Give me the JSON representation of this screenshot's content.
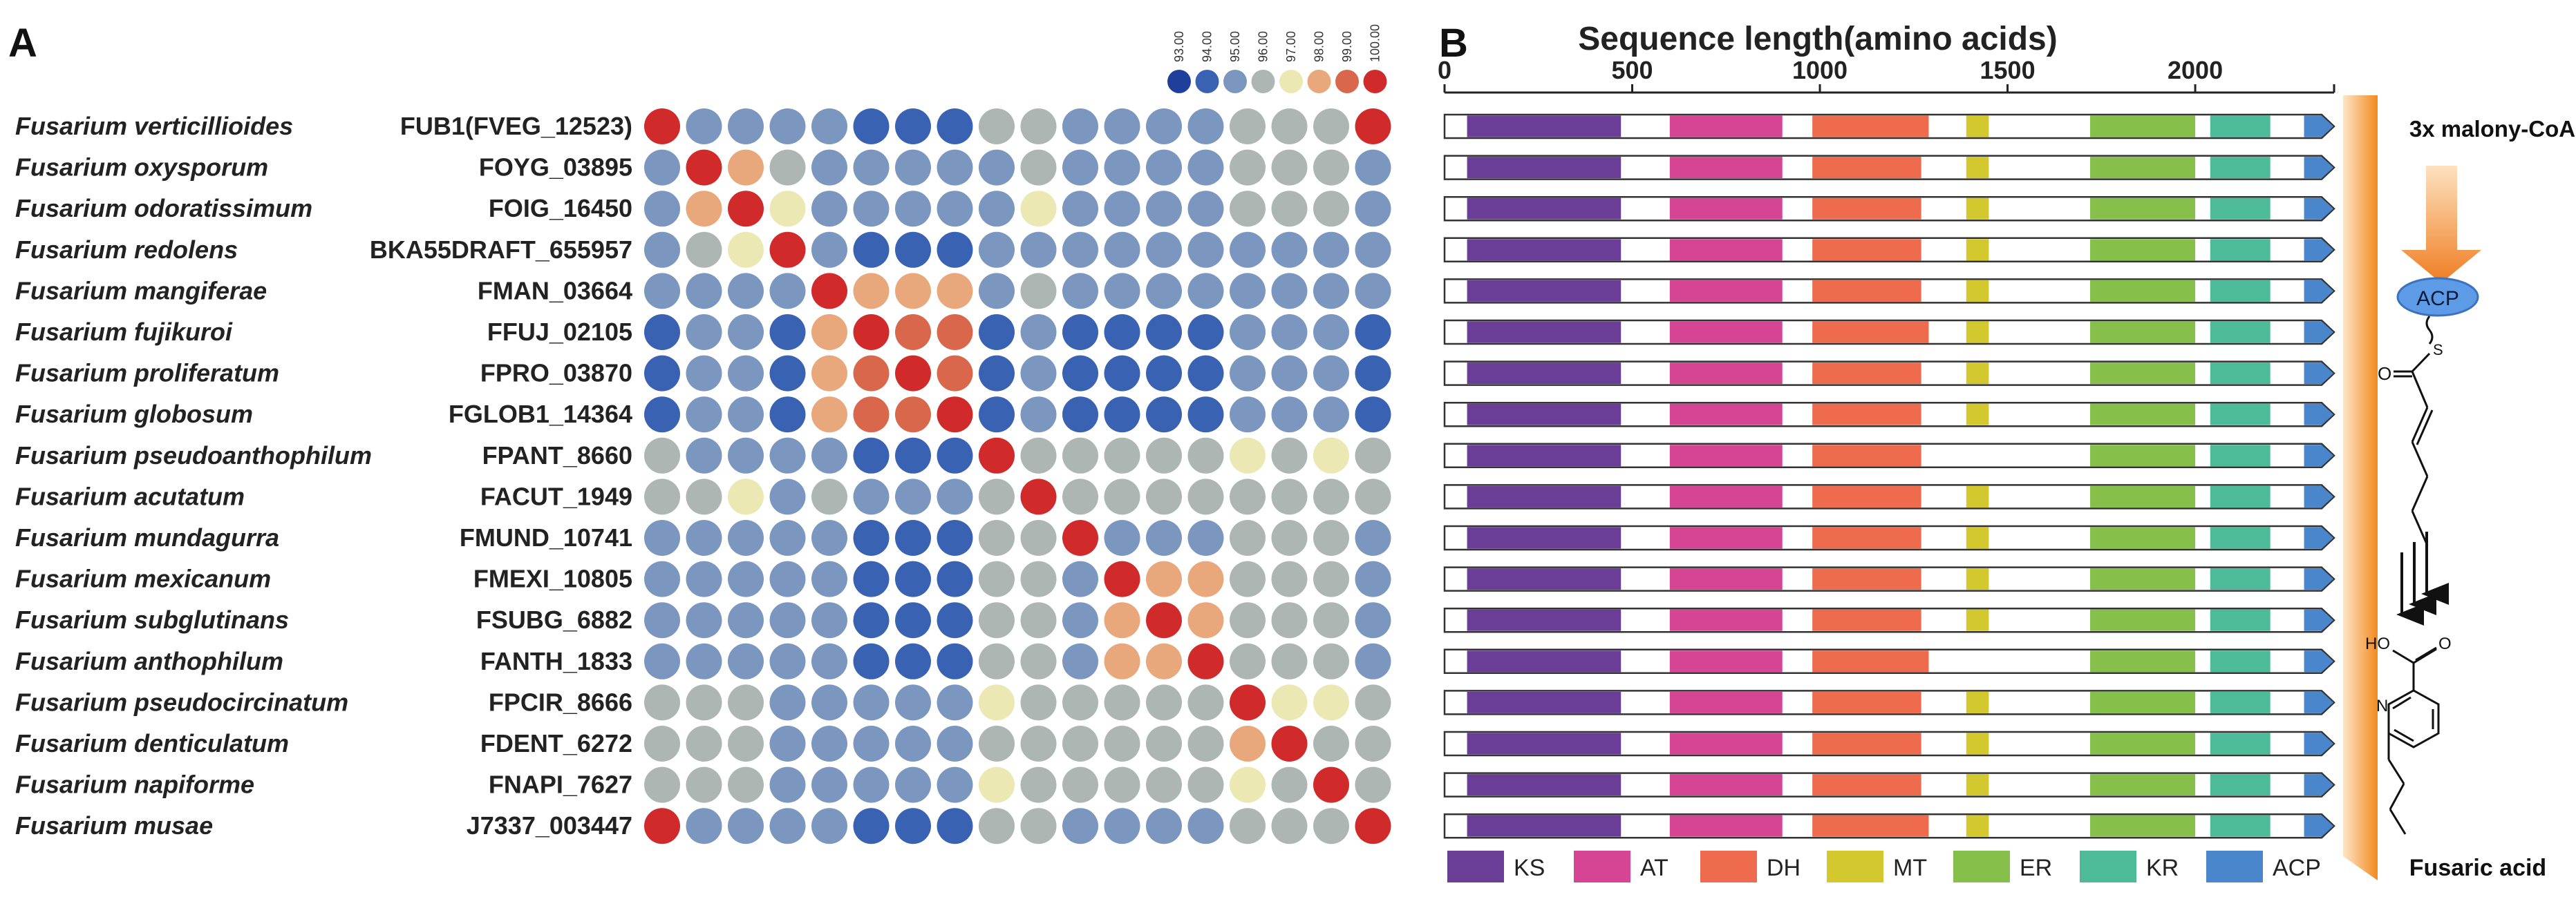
{
  "panel_a": {
    "label": "A",
    "legend": {
      "values": [
        "93.00",
        "94.00",
        "95.00",
        "96.00",
        "97.00",
        "98.00",
        "99.00",
        "100.00"
      ],
      "colors": [
        "#1f3f9a",
        "#3a62b3",
        "#7c97bf",
        "#aeb6b4",
        "#ece8b4",
        "#e9a87c",
        "#d9674b",
        "#d12a2a"
      ]
    },
    "rows": [
      {
        "species": "Fusarium verticillioides",
        "gene": "FUB1(FVEG_12523)"
      },
      {
        "species": "Fusarium oxysporum",
        "gene": "FOYG_03895"
      },
      {
        "species": "Fusarium odoratissimum",
        "gene": "FOIG_16450"
      },
      {
        "species": "Fusarium redolens",
        "gene": "BKA55DRAFT_655957"
      },
      {
        "species": "Fusarium mangiferae",
        "gene": "FMAN_03664"
      },
      {
        "species": "Fusarium fujikuroi",
        "gene": "FFUJ_02105"
      },
      {
        "species": "Fusarium proliferatum",
        "gene": "FPRO_03870"
      },
      {
        "species": "Fusarium globosum",
        "gene": "FGLOB1_14364"
      },
      {
        "species": "Fusarium pseudoanthophilum",
        "gene": "FPANT_8660"
      },
      {
        "species": "Fusarium acutatum",
        "gene": "FACUT_1949"
      },
      {
        "species": "Fusarium mundagurra",
        "gene": "FMUND_10741"
      },
      {
        "species": "Fusarium mexicanum",
        "gene": "FMEXI_10805"
      },
      {
        "species": "Fusarium subglutinans",
        "gene": "FSUBG_6882"
      },
      {
        "species": "Fusarium anthophilum",
        "gene": "FANTH_1833"
      },
      {
        "species": "Fusarium pseudocircinatum",
        "gene": "FPCIR_8666"
      },
      {
        "species": "Fusarium denticulatum",
        "gene": "FDENT_6272"
      },
      {
        "species": "Fusarium napiforme",
        "gene": "FNAPI_7627"
      },
      {
        "species": "Fusarium musae",
        "gene": "J7337_003447"
      }
    ]
  },
  "panel_b": {
    "label": "B",
    "title": "Sequence length(amino acids)",
    "domains": [
      {
        "name": "KS",
        "color": "#6a3d96"
      },
      {
        "name": "AT",
        "color": "#d64594"
      },
      {
        "name": "DH",
        "color": "#ee6b4d"
      },
      {
        "name": "MT",
        "color": "#d3c82e"
      },
      {
        "name": "ER",
        "color": "#86c04a"
      },
      {
        "name": "KR",
        "color": "#4dbb98"
      },
      {
        "name": "ACP",
        "color": "#4a86cc"
      }
    ]
  },
  "pathway": {
    "precursor": "3x malony-CoA",
    "carrier": "ACP",
    "product": "Fusaric acid",
    "atoms": {
      "o": "O",
      "s": "S",
      "ho": "HO",
      "n": "N"
    }
  },
  "chart_data": [
    {
      "type": "heatmap",
      "title": "",
      "value_unit": "percent identity",
      "scale_range": [
        93,
        100
      ],
      "rows": [
        "FUB1(FVEG_12523)",
        "FOYG_03895",
        "FOIG_16450",
        "BKA55DRAFT_655957",
        "FMAN_03664",
        "FFUJ_02105",
        "FPRO_03870",
        "FGLOB1_14364",
        "FPANT_8660",
        "FACUT_1949",
        "FMUND_10741",
        "FMEXI_10805",
        "FSUBG_6882",
        "FANTH_1833",
        "FPCIR_8666",
        "FDENT_6272",
        "FNAPI_7627",
        "J7337_003447"
      ],
      "columns": [
        "FUB1(FVEG_12523)",
        "FOYG_03895",
        "FOIG_16450",
        "BKA55DRAFT_655957",
        "FMAN_03664",
        "FFUJ_02105",
        "FPRO_03870",
        "FGLOB1_14364",
        "FPANT_8660",
        "FACUT_1949",
        "FMUND_10741",
        "FMEXI_10805",
        "FSUBG_6882",
        "FANTH_1833",
        "FPCIR_8666",
        "FDENT_6272",
        "FNAPI_7627",
        "J7337_003447"
      ],
      "matrix": [
        [
          100,
          95,
          95,
          94.5,
          94.5,
          94,
          94,
          94,
          96,
          96,
          95,
          95,
          95,
          95,
          96,
          96,
          96,
          99.5
        ],
        [
          95,
          100,
          98.3,
          96,
          95,
          94.5,
          94.5,
          94.5,
          95,
          95.5,
          95,
          95,
          95,
          95,
          95.5,
          95.5,
          95.5,
          95
        ],
        [
          95,
          98.3,
          100,
          96.5,
          95,
          94.5,
          94.5,
          94.5,
          95,
          96.5,
          95,
          95,
          95,
          95,
          95.5,
          95.5,
          95.5,
          95
        ],
        [
          94.5,
          96,
          96.5,
          100,
          94.5,
          94,
          94,
          94,
          94.5,
          95,
          94.5,
          94.5,
          94.5,
          94.5,
          95,
          95,
          95,
          94.5
        ],
        [
          94.5,
          95,
          95,
          94.5,
          100,
          98.3,
          98.2,
          98.3,
          94.5,
          95.5,
          94.5,
          94.5,
          94.5,
          94.5,
          95,
          95,
          95,
          94.5
        ],
        [
          94,
          94.5,
          94.5,
          94,
          98.3,
          100,
          99.3,
          98.7,
          94,
          95,
          94,
          94,
          94,
          94,
          94.5,
          94.5,
          94.5,
          94
        ],
        [
          94,
          94.5,
          94.5,
          94,
          98.2,
          99.3,
          100,
          99.2,
          94,
          95,
          94,
          94,
          94,
          94,
          94.5,
          94.5,
          94.5,
          94
        ],
        [
          94,
          94.5,
          94.5,
          94,
          98.3,
          98.7,
          99.2,
          100,
          94,
          95,
          94,
          94,
          94,
          94,
          94.5,
          94.5,
          94.5,
          94
        ],
        [
          96,
          95,
          95,
          94.5,
          94.5,
          94,
          94,
          94,
          100,
          96,
          95.5,
          95.5,
          95.5,
          95.5,
          97,
          96,
          97,
          96
        ],
        [
          96,
          95.5,
          96.5,
          95,
          95.5,
          95,
          95,
          95,
          96,
          100,
          96,
          96,
          96,
          96,
          96,
          96,
          96,
          96
        ],
        [
          95,
          95,
          95,
          94.5,
          94.5,
          94,
          94,
          94,
          95.5,
          96,
          100,
          95,
          95,
          95,
          95.5,
          95.5,
          95.5,
          95
        ],
        [
          95,
          95,
          95,
          94.5,
          94.5,
          94,
          94,
          94,
          96,
          95.5,
          95,
          100,
          98,
          98,
          95.5,
          95.5,
          95.5,
          95
        ],
        [
          95,
          95,
          95,
          94.5,
          94.5,
          94,
          94,
          94,
          95.5,
          95.5,
          95,
          98,
          100,
          98.3,
          95.5,
          95.5,
          95.5,
          95
        ],
        [
          95,
          95,
          95,
          94.5,
          94.5,
          94,
          94,
          94,
          95.5,
          95.5,
          95,
          98,
          98.3,
          100,
          95.5,
          95.5,
          95.5,
          95
        ],
        [
          96,
          95.5,
          95.5,
          95,
          95,
          94.5,
          94.5,
          94.5,
          97,
          96,
          95.5,
          95.5,
          95.5,
          95.5,
          100,
          97,
          97,
          96
        ],
        [
          96,
          95.5,
          95.5,
          95,
          95,
          94.5,
          94.5,
          94.5,
          96,
          96,
          95.5,
          95.5,
          95.5,
          95.5,
          97.5,
          100,
          96,
          96
        ],
        [
          96,
          95.5,
          95.5,
          95,
          95,
          94.5,
          94.5,
          94.5,
          97,
          96,
          95.5,
          95.5,
          95.5,
          95.5,
          97,
          96,
          100,
          96
        ],
        [
          99.5,
          95,
          95,
          94.5,
          94.5,
          94,
          94,
          94,
          96,
          96,
          95,
          95,
          95,
          95,
          96,
          96,
          96,
          100
        ]
      ],
      "legend_ticks": [
        "93.00",
        "94.00",
        "95.00",
        "96.00",
        "97.00",
        "98.00",
        "99.00",
        "100.00"
      ]
    },
    {
      "type": "bar",
      "subtype": "domain-architecture",
      "title": "Sequence length(amino acids)",
      "xlabel": "Sequence length(amino acids)",
      "xlim": [
        0,
        2370
      ],
      "xticks": [
        0,
        500,
        1000,
        1500,
        2000
      ],
      "protein_lengths": [
        2370,
        2370,
        2370,
        2370,
        2370,
        2370,
        2370,
        2370,
        2370,
        2370,
        2370,
        2370,
        2370,
        2370,
        2370,
        2370,
        2370,
        2370
      ],
      "domain_spans": [
        [
          [
            60,
            470
          ],
          [
            600,
            900
          ],
          [
            980,
            1290
          ],
          [
            1390,
            1450
          ],
          [
            1720,
            2000
          ],
          [
            2040,
            2200
          ],
          [
            2290,
            2370
          ]
        ],
        [
          [
            60,
            470
          ],
          [
            600,
            900
          ],
          [
            980,
            1270
          ],
          [
            1390,
            1450
          ],
          [
            1720,
            2000
          ],
          [
            2040,
            2200
          ],
          [
            2290,
            2370
          ]
        ],
        [
          [
            60,
            470
          ],
          [
            600,
            900
          ],
          [
            980,
            1270
          ],
          [
            1390,
            1450
          ],
          [
            1720,
            2000
          ],
          [
            2040,
            2200
          ],
          [
            2290,
            2370
          ]
        ],
        [
          [
            60,
            470
          ],
          [
            600,
            900
          ],
          [
            980,
            1270
          ],
          [
            1390,
            1450
          ],
          [
            1720,
            2000
          ],
          [
            2040,
            2200
          ],
          [
            2290,
            2370
          ]
        ],
        [
          [
            60,
            470
          ],
          [
            600,
            900
          ],
          [
            980,
            1270
          ],
          [
            1390,
            1450
          ],
          [
            1720,
            2000
          ],
          [
            2040,
            2200
          ],
          [
            2290,
            2370
          ]
        ],
        [
          [
            60,
            470
          ],
          [
            600,
            900
          ],
          [
            980,
            1290
          ],
          [
            1390,
            1450
          ],
          [
            1720,
            2000
          ],
          [
            2040,
            2200
          ],
          [
            2290,
            2370
          ]
        ],
        [
          [
            60,
            470
          ],
          [
            600,
            900
          ],
          [
            980,
            1270
          ],
          [
            1390,
            1450
          ],
          [
            1720,
            2000
          ],
          [
            2040,
            2200
          ],
          [
            2290,
            2370
          ]
        ],
        [
          [
            60,
            470
          ],
          [
            600,
            900
          ],
          [
            980,
            1270
          ],
          [
            1390,
            1450
          ],
          [
            1720,
            2000
          ],
          [
            2040,
            2200
          ],
          [
            2290,
            2370
          ]
        ],
        [
          [
            60,
            470
          ],
          [
            600,
            900
          ],
          [
            980,
            1270
          ],
          null,
          [
            1720,
            2000
          ],
          [
            2040,
            2200
          ],
          [
            2290,
            2370
          ]
        ],
        [
          [
            60,
            470
          ],
          [
            600,
            900
          ],
          [
            980,
            1270
          ],
          [
            1390,
            1450
          ],
          [
            1720,
            2000
          ],
          [
            2040,
            2200
          ],
          [
            2290,
            2370
          ]
        ],
        [
          [
            60,
            470
          ],
          [
            600,
            900
          ],
          [
            980,
            1270
          ],
          [
            1390,
            1450
          ],
          [
            1720,
            2000
          ],
          [
            2040,
            2200
          ],
          [
            2290,
            2370
          ]
        ],
        [
          [
            60,
            470
          ],
          [
            600,
            900
          ],
          [
            980,
            1270
          ],
          [
            1390,
            1450
          ],
          [
            1720,
            2000
          ],
          [
            2040,
            2200
          ],
          [
            2290,
            2370
          ]
        ],
        [
          [
            60,
            470
          ],
          [
            600,
            900
          ],
          [
            980,
            1270
          ],
          [
            1390,
            1450
          ],
          [
            1720,
            2000
          ],
          [
            2040,
            2200
          ],
          [
            2290,
            2370
          ]
        ],
        [
          [
            60,
            470
          ],
          [
            600,
            900
          ],
          [
            980,
            1290
          ],
          null,
          [
            1720,
            2000
          ],
          [
            2040,
            2200
          ],
          [
            2290,
            2370
          ]
        ],
        [
          [
            60,
            470
          ],
          [
            600,
            900
          ],
          [
            980,
            1270
          ],
          [
            1390,
            1450
          ],
          [
            1720,
            2000
          ],
          [
            2040,
            2200
          ],
          [
            2290,
            2370
          ]
        ],
        [
          [
            60,
            470
          ],
          [
            600,
            900
          ],
          [
            980,
            1270
          ],
          [
            1390,
            1450
          ],
          [
            1720,
            2000
          ],
          [
            2040,
            2200
          ],
          [
            2290,
            2370
          ]
        ],
        [
          [
            60,
            470
          ],
          [
            600,
            900
          ],
          [
            980,
            1270
          ],
          [
            1390,
            1450
          ],
          [
            1720,
            2000
          ],
          [
            2040,
            2200
          ],
          [
            2290,
            2370
          ]
        ],
        [
          [
            60,
            470
          ],
          [
            600,
            900
          ],
          [
            980,
            1290
          ],
          [
            1390,
            1450
          ],
          [
            1720,
            2000
          ],
          [
            2040,
            2200
          ],
          [
            2290,
            2370
          ]
        ]
      ],
      "legend": [
        "KS",
        "AT",
        "DH",
        "MT",
        "ER",
        "KR",
        "ACP"
      ],
      "legend_position": "bottom"
    }
  ]
}
